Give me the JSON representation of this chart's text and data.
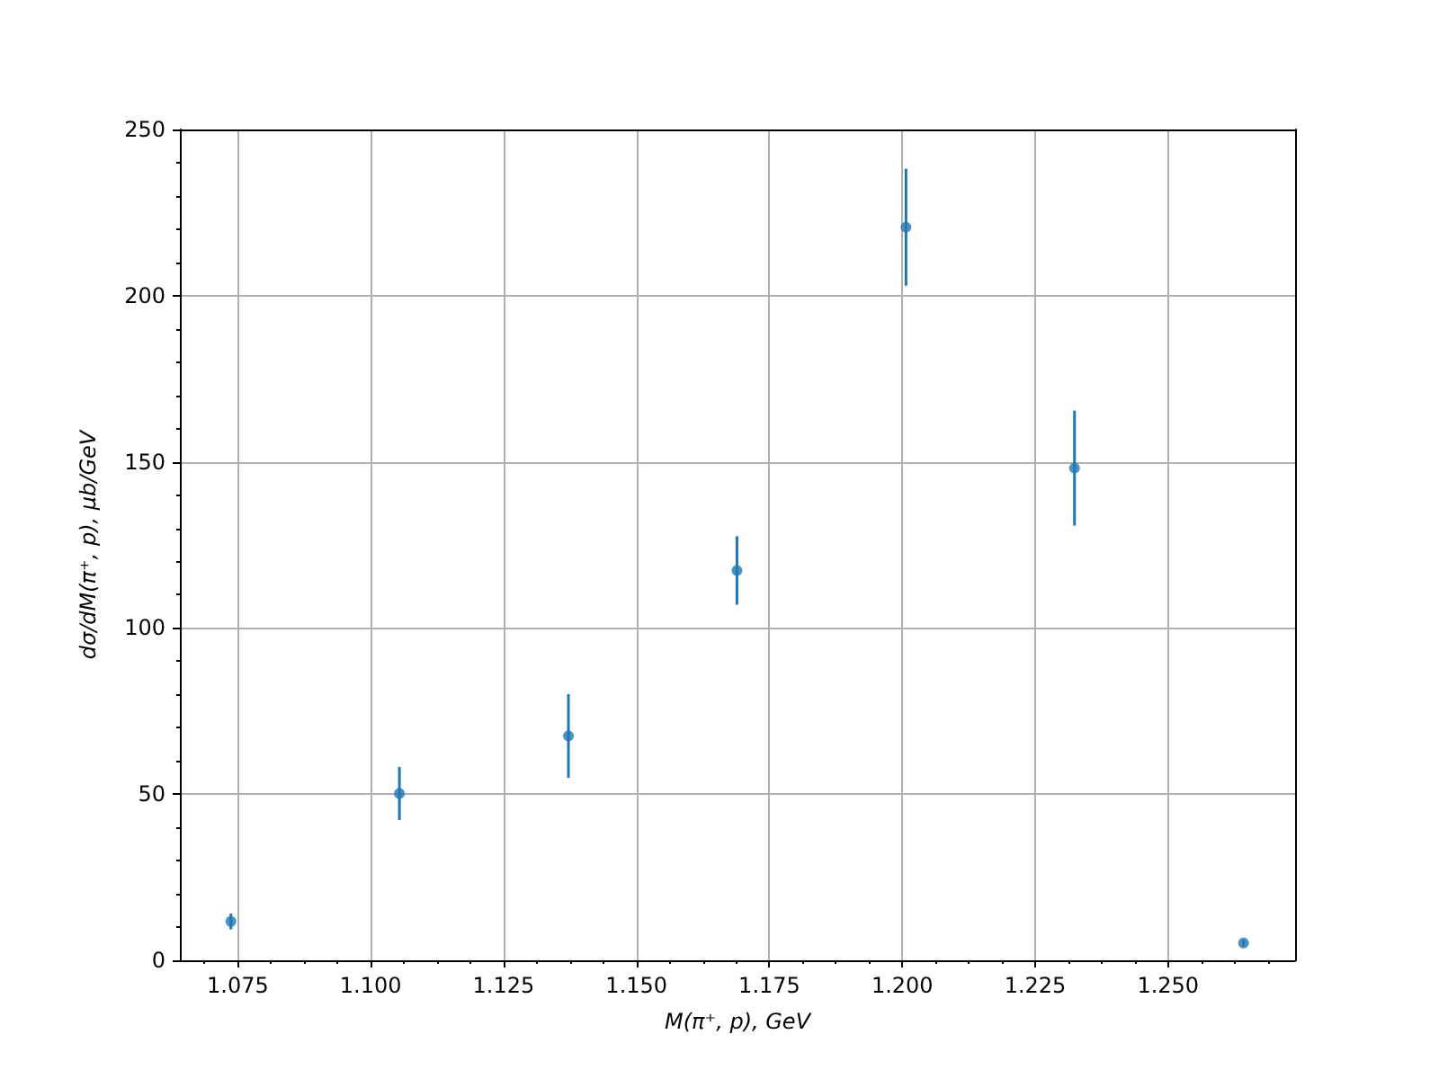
{
  "chart_data": {
    "type": "scatter",
    "xlabel": "M(π⁺, p), GeV",
    "ylabel": "dσ/dM(π⁺, p), μb/GeV",
    "x": [
      1.0737,
      1.1054,
      1.1372,
      1.1689,
      1.2007,
      1.2324,
      1.2642
    ],
    "series": [
      {
        "color": "#1f77b4",
        "values": [
          11.7,
          50.2,
          67.5,
          117.3,
          220.6,
          148.1,
          5.2
        ],
        "errors": [
          2.4,
          8,
          12.6,
          10.3,
          17.6,
          17.3,
          1
        ]
      }
    ],
    "xlim": [
      1.0641,
      1.2739
    ],
    "xticks": [
      {
        "value": 1.06875,
        "label": null
      },
      {
        "value": 1.075,
        "label": "1.075"
      },
      {
        "value": 1.08125,
        "label": null
      },
      {
        "value": 1.0875,
        "label": null
      },
      {
        "value": 1.09375,
        "label": null
      },
      {
        "value": 1.1,
        "label": "1.100"
      },
      {
        "value": 1.10625,
        "label": null
      },
      {
        "value": 1.1125,
        "label": null
      },
      {
        "value": 1.11875,
        "label": null
      },
      {
        "value": 1.125,
        "label": "1.125"
      },
      {
        "value": 1.13125,
        "label": null
      },
      {
        "value": 1.1375,
        "label": null
      },
      {
        "value": 1.14375,
        "label": null
      },
      {
        "value": 1.15,
        "label": "1.150"
      },
      {
        "value": 1.15625,
        "label": null
      },
      {
        "value": 1.1625,
        "label": null
      },
      {
        "value": 1.16875,
        "label": null
      },
      {
        "value": 1.175,
        "label": "1.175"
      },
      {
        "value": 1.18125,
        "label": null
      },
      {
        "value": 1.1875,
        "label": null
      },
      {
        "value": 1.19375,
        "label": null
      },
      {
        "value": 1.2,
        "label": "1.200"
      },
      {
        "value": 1.20625,
        "label": null
      },
      {
        "value": 1.2125,
        "label": null
      },
      {
        "value": 1.21875,
        "label": null
      },
      {
        "value": 1.225,
        "label": "1.225"
      },
      {
        "value": 1.23125,
        "label": null
      },
      {
        "value": 1.2375,
        "label": null
      },
      {
        "value": 1.24375,
        "label": null
      },
      {
        "value": 1.25,
        "label": "1.250"
      },
      {
        "value": 1.25625,
        "label": null
      },
      {
        "value": 1.2625,
        "label": null
      },
      {
        "value": 1.26875,
        "label": null
      }
    ],
    "ylim": [
      0,
      250
    ],
    "yticks": [
      0,
      {
        "value": 10,
        "label": null
      },
      {
        "value": 20,
        "label": null
      },
      {
        "value": 30,
        "label": null
      },
      {
        "value": 40,
        "label": null
      },
      50,
      {
        "value": 60,
        "label": null
      },
      {
        "value": 70,
        "label": null
      },
      {
        "value": 80,
        "label": null
      },
      {
        "value": 90,
        "label": null
      },
      100,
      {
        "value": 110,
        "label": null
      },
      {
        "value": 120,
        "label": null
      },
      {
        "value": 130,
        "label": null
      },
      {
        "value": 140,
        "label": null
      },
      150,
      {
        "value": 160,
        "label": null
      },
      {
        "value": 170,
        "label": null
      },
      {
        "value": 180,
        "label": null
      },
      {
        "value": 190,
        "label": null
      },
      200,
      {
        "value": 210,
        "label": null
      },
      {
        "value": 220,
        "label": null
      },
      {
        "value": 230,
        "label": null
      },
      {
        "value": 240,
        "label": null
      },
      250
    ],
    "grid": true,
    "marker": "circle"
  }
}
